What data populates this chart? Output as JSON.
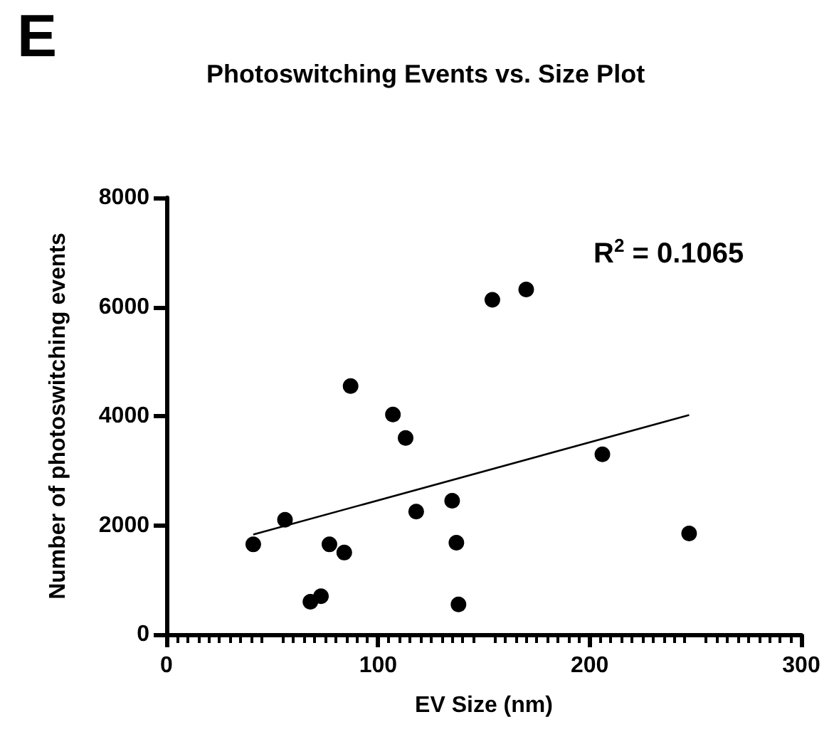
{
  "chart_data": {
    "type": "scatter",
    "title": "Photoswitching Events vs. Size Plot",
    "xlabel": "EV Size (nm)",
    "ylabel": "Number of photoswitching events",
    "annotations": [
      "E",
      "R$^{2}$ = 0.1065"
    ],
    "series": [
      {
        "color": "#000000",
        "marker": "circle",
        "x": [
          41,
          56,
          68,
          73,
          77,
          84,
          87,
          107,
          113,
          118,
          135,
          137,
          138,
          154,
          170,
          206,
          247
        ],
        "values": [
          1650,
          2100,
          600,
          700,
          1650,
          1500,
          4550,
          4030,
          3600,
          2250,
          2450,
          1680,
          550,
          6130,
          6320,
          3300,
          1850
        ]
      },
      {
        "type": "line",
        "marker": "none",
        "color": "#000000",
        "x": [
          41,
          247
        ],
        "values": [
          1830,
          4020
        ]
      }
    ],
    "xlim": [
      0,
      300
    ],
    "xticks": [
      0,
      100,
      200,
      300
    ],
    "ylim": [
      0,
      8000
    ],
    "yticks": [
      0,
      2000,
      4000,
      6000,
      8000
    ],
    "grid": false
  }
}
